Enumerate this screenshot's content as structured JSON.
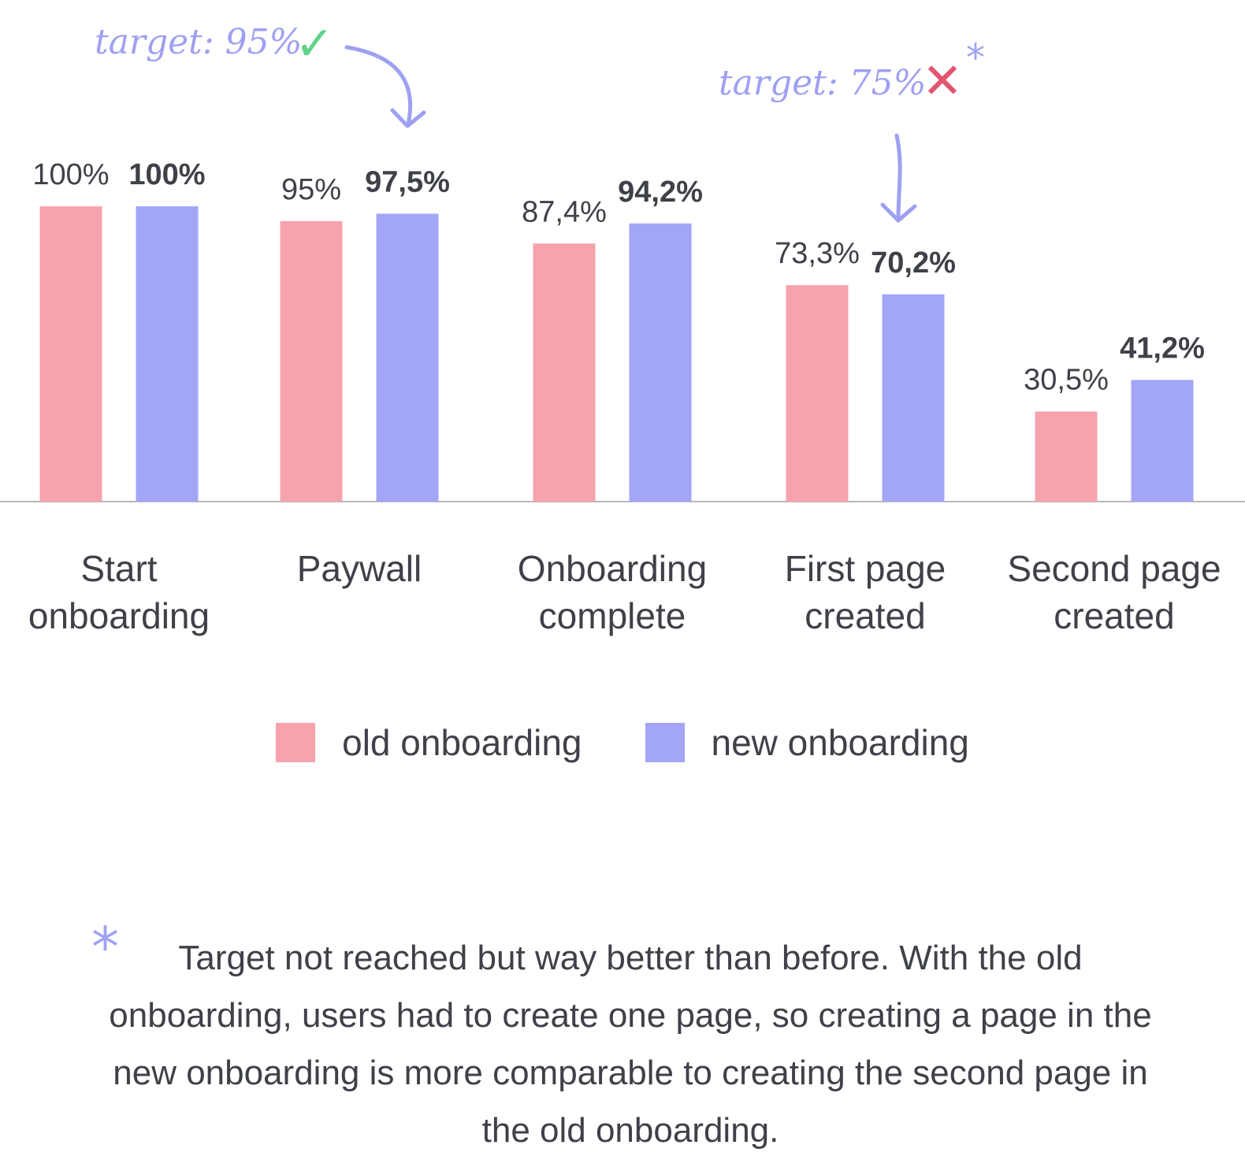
{
  "chart_data": {
    "type": "bar",
    "categories": [
      "Start\nonboarding",
      "Paywall",
      "Onboarding\ncomplete",
      "First page\ncreated",
      "Second page\ncreated"
    ],
    "series": [
      {
        "name": "old onboarding",
        "values": [
          100,
          95,
          87.4,
          73.3,
          30.5
        ],
        "labels": [
          "100%",
          "95%",
          "87,4%",
          "73,3%",
          "30,5%"
        ],
        "color": "#f7a3ae"
      },
      {
        "name": "new onboarding",
        "values": [
          100,
          97.5,
          94.2,
          70.2,
          41.2
        ],
        "labels": [
          "100%",
          "97,5%",
          "94,2%",
          "70,2%",
          "41,2%"
        ],
        "color": "#a3a5f6"
      }
    ],
    "ylim": [
      0,
      100
    ],
    "grid": false,
    "legend_position": "bottom-center",
    "annotations": [
      {
        "text": "target: 95%",
        "mark": "✓",
        "mark_color": "#5fd48a",
        "points_to": "Paywall"
      },
      {
        "text": "target: 75%",
        "mark": "✕",
        "mark_color": "#e2566f",
        "asterisk": "*",
        "points_to": "First page\ncreated"
      }
    ]
  },
  "legend": {
    "old_label": "old onboarding",
    "new_label": "new onboarding",
    "old_color": "#f7a3ae",
    "new_color": "#a3a5f6"
  },
  "footnote": {
    "star": "*",
    "text": "Target not reached but way better than before. With the old onboarding, users had to create one page, so creating a page in the new onboarding is more comparable to creating the second page in the old onboarding."
  }
}
